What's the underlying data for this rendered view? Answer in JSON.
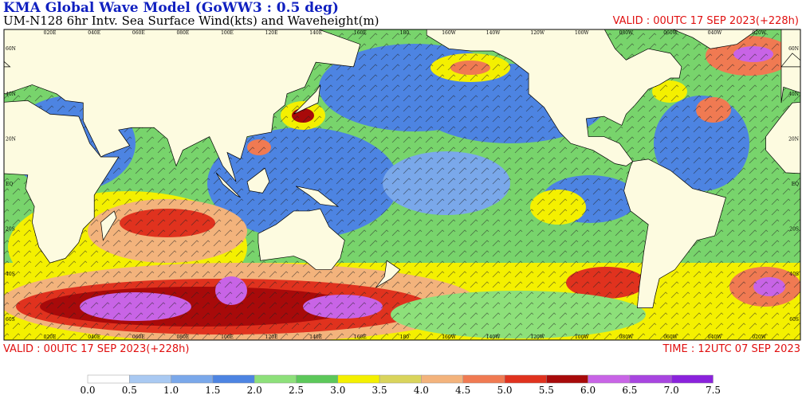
{
  "header": {
    "title": "KMA  Global Wave Model (GoWW3 : 0.5 deg)",
    "subtitle": "UM-N128  6hr Intv. Sea Surface Wind(kts) and Waveheight(m)",
    "valid": "VALID : 00UTC 17 SEP 2023(+228h)"
  },
  "map": {
    "lon_labels": [
      "020E",
      "040E",
      "060E",
      "080E",
      "100E",
      "120E",
      "140E",
      "160E",
      "180",
      "160W",
      "140W",
      "120W",
      "100W",
      "080W",
      "060W",
      "040W",
      "020W"
    ],
    "lat_labels": [
      "60N",
      "40N",
      "20N",
      "EQ",
      "20S",
      "40S",
      "60S"
    ]
  },
  "footer": {
    "valid": "VALID : 00UTC 17 SEP 2023(+228h)",
    "time": "TIME : 12UTC 07 SEP 2023"
  },
  "colorbar": {
    "labels": [
      "0.0",
      "0.5",
      "1.0",
      "1.5",
      "2.0",
      "2.5",
      "3.0",
      "3.5",
      "4.0",
      "4.5",
      "5.0",
      "5.5",
      "6.0",
      "6.5",
      "7.0",
      "7.5"
    ],
    "colors": [
      "#ffffff",
      "#a9c9f2",
      "#7aa8ea",
      "#4d84e2",
      "#8de07a",
      "#5cc85a",
      "#f4f000",
      "#d9d45c",
      "#f3b37c",
      "#f07a52",
      "#e0321e",
      "#a80a0a",
      "#c864e6",
      "#a845e0",
      "#8a22dc"
    ]
  }
}
